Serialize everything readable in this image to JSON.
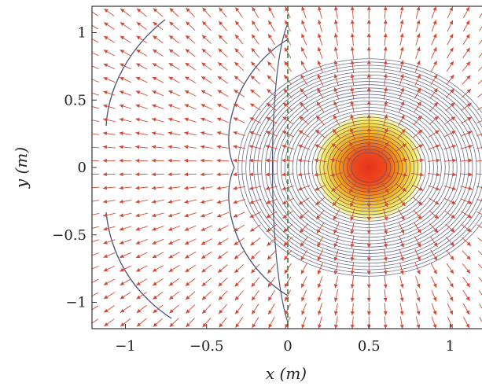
{
  "chart_data": {
    "type": "vector-field-contour",
    "title": "",
    "xlabel": "x (m)",
    "ylabel": "y (m)",
    "xlim": [
      -1.2,
      1.2
    ],
    "ylim": [
      -1.2,
      1.2
    ],
    "xticks": [
      -1,
      -0.5,
      0,
      0.5,
      1
    ],
    "xtick_labels": [
      "−1",
      "−0.5",
      "0",
      "0.5",
      "1"
    ],
    "yticks": [
      -1,
      -0.5,
      0,
      0.5,
      1
    ],
    "ytick_labels": [
      "−1",
      "−0.5",
      "0",
      "0.5",
      "1"
    ],
    "source": {
      "x": 0.5,
      "y": 0
    },
    "mirror_line_x": 0,
    "grid": false,
    "colors": {
      "arrows": "#d24a35",
      "contours": "#4c5276",
      "mirror_line": "#3d7a3d",
      "heat_core": "#e8321e",
      "heat_mid": "#f6a21a",
      "heat_edge": "#f3e64a"
    }
  }
}
